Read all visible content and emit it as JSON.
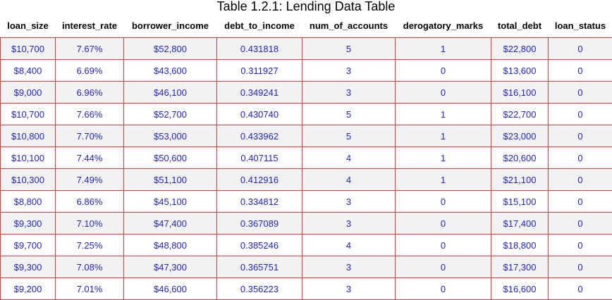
{
  "chart_data": {
    "type": "table",
    "title": "Table 1.2.1: Lending Data Table",
    "columns": [
      "loan_size",
      "interest_rate",
      "borrower_income",
      "debt_to_income",
      "num_of_accounts",
      "derogatory_marks",
      "total_debt",
      "loan_status"
    ],
    "rows": [
      [
        "$10,700",
        "7.67%",
        "$52,800",
        "0.431818",
        "5",
        "1",
        "$22,800",
        "0"
      ],
      [
        "$8,400",
        "6.69%",
        "$43,600",
        "0.311927",
        "3",
        "0",
        "$13,600",
        "0"
      ],
      [
        "$9,000",
        "6.96%",
        "$46,100",
        "0.349241",
        "3",
        "0",
        "$16,100",
        "0"
      ],
      [
        "$10,700",
        "7.66%",
        "$52,700",
        "0.430740",
        "5",
        "1",
        "$22,700",
        "0"
      ],
      [
        "$10,800",
        "7.70%",
        "$53,000",
        "0.433962",
        "5",
        "1",
        "$23,000",
        "0"
      ],
      [
        "$10,100",
        "7.44%",
        "$50,600",
        "0.407115",
        "4",
        "1",
        "$20,600",
        "0"
      ],
      [
        "$10,300",
        "7.49%",
        "$51,100",
        "0.412916",
        "4",
        "1",
        "$21,100",
        "0"
      ],
      [
        "$8,800",
        "6.86%",
        "$45,100",
        "0.334812",
        "3",
        "0",
        "$15,100",
        "0"
      ],
      [
        "$9,300",
        "7.10%",
        "$47,400",
        "0.367089",
        "3",
        "0",
        "$17,400",
        "0"
      ],
      [
        "$9,700",
        "7.25%",
        "$48,800",
        "0.385246",
        "4",
        "0",
        "$18,800",
        "0"
      ],
      [
        "$9,300",
        "7.08%",
        "$47,300",
        "0.365751",
        "3",
        "0",
        "$17,300",
        "0"
      ],
      [
        "$9,200",
        "7.01%",
        "$46,600",
        "0.356223",
        "3",
        "0",
        "$16,600",
        "0"
      ]
    ],
    "colors": {
      "cell_text": "#1f25c9",
      "border": "#d93a3a",
      "stripe": "#f2f2f2"
    }
  }
}
